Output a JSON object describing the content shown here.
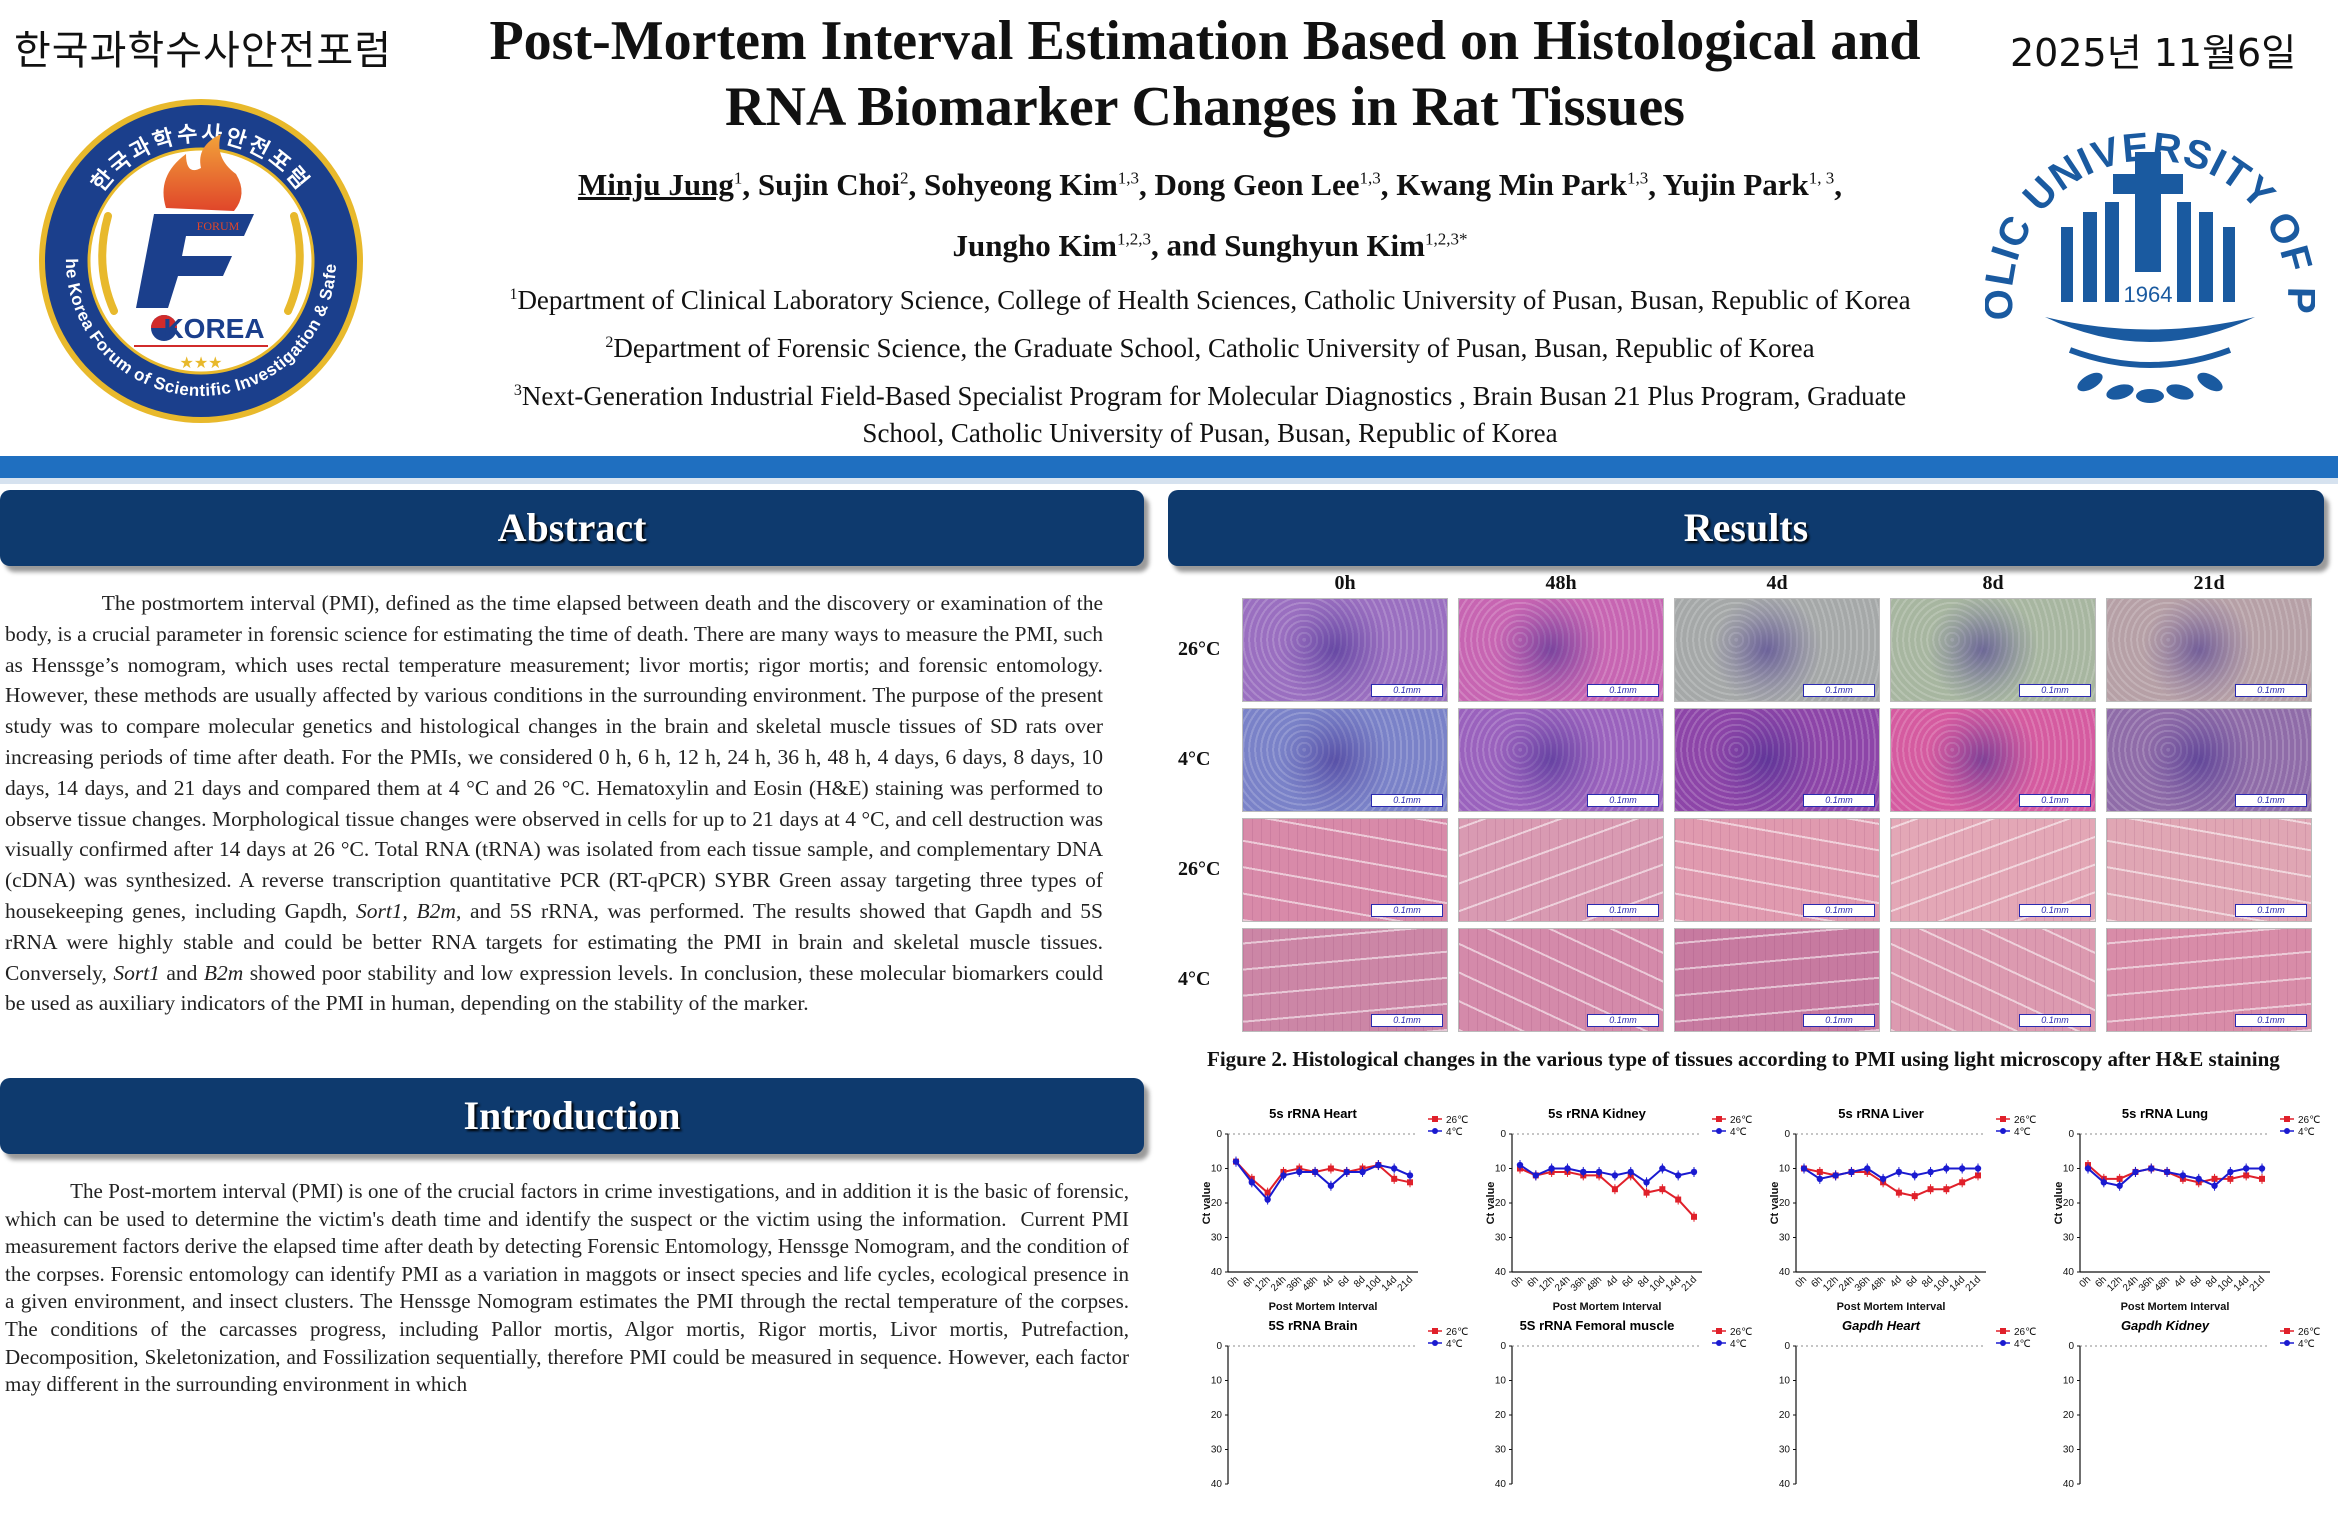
{
  "header": {
    "korean_forum_name": "한국과학수사안전포럼",
    "date": "2025년 11월6일",
    "title_line1": "Post-Mortem Interval Estimation Based on Histological and",
    "title_line2": "RNA Biomarker Changes in Rat Tissues",
    "authors": [
      {
        "name": "Minju Jung",
        "sup": "1",
        "underline": true
      },
      {
        "name": "Sujin Choi",
        "sup": "2"
      },
      {
        "name": "Sohyeong Kim",
        "sup": "1,3"
      },
      {
        "name": "Dong Geon Lee",
        "sup": "1,3"
      },
      {
        "name": "Kwang Min Park",
        "sup": "1,3"
      },
      {
        "name": "Yujin Park",
        "sup": "1, 3"
      },
      {
        "name": "Jungho Kim",
        "sup": "1,2,3"
      },
      {
        "name": "Sunghyun Kim",
        "sup": "1,2,3*"
      }
    ],
    "affiliations": [
      {
        "sup": "1",
        "text": "Department of Clinical Laboratory Science, College of Health Sciences, Catholic University of Pusan, Busan, Republic of Korea"
      },
      {
        "sup": "2",
        "text": "Department of Forensic Science, the Graduate School, Catholic University of Pusan, Busan, Republic of Korea"
      },
      {
        "sup": "3",
        "text": "Next-Generation Industrial Field-Based Specialist Program for Molecular Diagnostics , Brain Busan 21 Plus Program, Graduate School, Catholic University of Pusan, Busan, Republic of Korea"
      }
    ]
  },
  "left_logo": {
    "ring_top_text": "한국과학수사안전포럼",
    "ring_bottom_text": "The Korea Forum of Scientific Investigation & Safety",
    "forum_text": "FORUM",
    "korea_text": "KOREA",
    "stars": "★★★",
    "colors": {
      "navy": "#1b3f8c",
      "gold": "#e8b92c",
      "flame": "#e0462a"
    }
  },
  "right_logo": {
    "ring_text": "CATHOLIC UNIVERSITY OF PUSAN",
    "year": "1964",
    "color": "#1a5aa0"
  },
  "abstract": {
    "heading": "Abstract",
    "text_html": "&nbsp;&nbsp;&nbsp;&nbsp;&nbsp;&nbsp;&nbsp;&nbsp;&nbsp;&nbsp;&nbsp;&nbsp;&nbsp;&nbsp;&nbsp;&nbsp;The postmortem interval (PMI), defined as the time elapsed between death and the discovery or examination of the body, is a crucial parameter in forensic science for estimating the time of death. There are many ways to measure the PMI, such as Henssge’s nomogram, which uses rectal temperature measurement; livor mortis; rigor mortis; and forensic entomology. However, these methods are usually affected by various conditions in the surrounding environment. The purpose of the present study was to compare molecular genetics and histological changes in the brain and skeletal muscle tissues of SD rats over increasing periods of time after death. For the PMIs, we considered 0 h, 6 h, 12 h, 24 h, 36 h, 48 h, 4 days, 6 days, 8 days, 10 days, 14 days, and 21 days and compared them at 4 °C and 26 °C. Hematoxylin and Eosin (H&amp;E) staining was performed to observe tissue changes. Morphological tissue changes were observed in cells for up to 21 days at 4 °C, and cell destruction was visually confirmed after 14 days at 26 °C. Total RNA (tRNA) was isolated from each tissue sample, and complementary DNA (cDNA) was synthesized. A reverse transcription quantitative PCR (RT-qPCR) SYBR Green assay targeting three types of housekeeping genes, including Gapdh, <i>Sort1</i>, <i>B2m</i>, and 5S rRNA, was performed. The results showed that Gapdh and 5S rRNA were highly stable and could be better RNA targets for estimating the PMI in brain and skeletal muscle tissues. Conversely, <i>Sort1</i> and <i>B2m</i> showed poor stability and low expression levels. In conclusion, these molecular biomarkers could be used as auxiliary indicators of the PMI in human, depending on the stability of the marker."
  },
  "introduction": {
    "heading": "Introduction",
    "text_html": "&nbsp;&nbsp;&nbsp;&nbsp;&nbsp;&nbsp;&nbsp;&nbsp;&nbsp;&nbsp;&nbsp;&nbsp;The Post-mortem interval (PMI) is one of the crucial factors in crime investigations, and in addition it is the basic of forensic, which can be used to determine the victim's death time and identify the suspect or the victim using the information. &nbsp;Current PMI measurement factors derive the elapsed time after death by detecting Forensic Entomology, Henssge Nomogram, and the condition of the corpses. Forensic entomology can identify PMI as a variation in maggots or insect species and life cycles, ecological presence in a given environment, and insect clusters. The Henssge Nomogram estimates the PMI through the rectal temperature of the corpses. The conditions of the carcasses progress, including Pallor mortis, Algor mortis, Rigor mortis, Livor mortis, Putrefaction, Decomposition, Skeletonization, and Fossilization sequentially, therefore PMI could be measured in sequence. However, each factor may different in the surrounding environment in which"
  },
  "results": {
    "heading": "Results",
    "histology": {
      "columns": [
        "0h",
        "48h",
        "4d",
        "8d",
        "21d"
      ],
      "rows": [
        {
          "label": "26°C",
          "tissue": "brain",
          "tints": [
            "#9a6fc0",
            "#c765b2",
            "#a5a8a8",
            "#a7b6a0",
            "#b6a0a6"
          ]
        },
        {
          "label": "4°C",
          "tissue": "brain",
          "tints": [
            "#7a82c8",
            "#9a62bd",
            "#8d45a8",
            "#d55ba0",
            "#8f6ca8"
          ]
        },
        {
          "label": "26°C",
          "tissue": "muscle",
          "tints": [
            "#d88aa9",
            "#d99ab2",
            "#e09aaf",
            "#e3a7b6",
            "#e0a6b4"
          ]
        },
        {
          "label": "4°C",
          "tissue": "muscle",
          "tints": [
            "#cc86a6",
            "#d48aaa",
            "#c77aa0",
            "#dc9ab0",
            "#d88ca8"
          ]
        }
      ],
      "scale_label": "0.1mm"
    },
    "figure_caption": "Figure 2. Histological changes in the various type of tissues according to PMI using light microscopy after H&E staining"
  },
  "chart_data": [
    {
      "type": "line",
      "title": "5s rRNA Heart",
      "ylabel": "Ct value",
      "xlabel": "Post Mortem Interval",
      "categories": [
        "0h",
        "6h",
        "12h",
        "24h",
        "36h",
        "48h",
        "4d",
        "6d",
        "8d",
        "10d",
        "14d",
        "21d"
      ],
      "ylim": [
        0,
        40
      ],
      "series": [
        {
          "name": "26℃",
          "values": [
            8,
            13,
            17,
            11,
            10,
            11,
            10,
            11,
            10,
            9,
            13,
            14
          ]
        },
        {
          "name": "4℃",
          "values": [
            8,
            14,
            19,
            12,
            11,
            11,
            15,
            11,
            11,
            9,
            10,
            12
          ]
        }
      ]
    },
    {
      "type": "line",
      "title": "5s rRNA Kidney",
      "ylabel": "Ct value",
      "xlabel": "Post Mortem Interval",
      "categories": [
        "0h",
        "6h",
        "12h",
        "24h",
        "36h",
        "48h",
        "4d",
        "6d",
        "8d",
        "10d",
        "14d",
        "21d"
      ],
      "ylim": [
        0,
        40
      ],
      "series": [
        {
          "name": "26℃",
          "values": [
            10,
            12,
            11,
            11,
            12,
            12,
            16,
            12,
            17,
            16,
            19,
            24
          ]
        },
        {
          "name": "4℃",
          "values": [
            9,
            12,
            10,
            10,
            11,
            11,
            12,
            11,
            14,
            10,
            12,
            11
          ]
        }
      ]
    },
    {
      "type": "line",
      "title": "5s rRNA Liver",
      "ylabel": "Ct value",
      "xlabel": "Post Mortem Interval",
      "categories": [
        "0h",
        "6h",
        "12h",
        "24h",
        "36h",
        "48h",
        "4d",
        "6d",
        "8d",
        "10d",
        "14d",
        "21d"
      ],
      "ylim": [
        0,
        40
      ],
      "series": [
        {
          "name": "26℃",
          "values": [
            10,
            11,
            12,
            11,
            11,
            14,
            17,
            18,
            16,
            16,
            14,
            12
          ]
        },
        {
          "name": "4℃",
          "values": [
            10,
            13,
            12,
            11,
            10,
            13,
            11,
            12,
            11,
            10,
            10,
            10
          ]
        }
      ]
    },
    {
      "type": "line",
      "title": "5s rRNA Lung",
      "ylabel": "Ct value",
      "xlabel": "Post Mortem Interval",
      "categories": [
        "0h",
        "6h",
        "12h",
        "24h",
        "36h",
        "48h",
        "4d",
        "6d",
        "8d",
        "10d",
        "14d",
        "21d"
      ],
      "ylim": [
        0,
        40
      ],
      "series": [
        {
          "name": "26℃",
          "values": [
            9,
            13,
            13,
            11,
            10,
            11,
            13,
            14,
            13,
            13,
            12,
            13
          ]
        },
        {
          "name": "4℃",
          "values": [
            10,
            14,
            15,
            11,
            10,
            11,
            12,
            13,
            15,
            11,
            10,
            10
          ]
        }
      ]
    },
    {
      "type": "line",
      "title": "5S rRNA Brain",
      "ylabel": "",
      "xlabel": "",
      "categories": [],
      "ylim": [
        0,
        40
      ],
      "series": [
        {
          "name": "26℃",
          "values": []
        },
        {
          "name": "4℃",
          "values": []
        }
      ]
    },
    {
      "type": "line",
      "title": "5S rRNA Femoral muscle",
      "ylabel": "",
      "xlabel": "",
      "categories": [],
      "ylim": [
        0,
        40
      ],
      "series": [
        {
          "name": "26℃",
          "values": []
        },
        {
          "name": "4℃",
          "values": []
        }
      ]
    },
    {
      "type": "line",
      "title": "Gapdh Heart",
      "ylabel": "",
      "xlabel": "",
      "categories": [],
      "ylim": [
        0,
        40
      ],
      "series": [
        {
          "name": "26℃",
          "values": []
        },
        {
          "name": "4℃",
          "values": []
        }
      ]
    },
    {
      "type": "line",
      "title": "Gapdh Kidney",
      "ylabel": "",
      "xlabel": "",
      "categories": [],
      "ylim": [
        0,
        40
      ],
      "series": [
        {
          "name": "26℃",
          "values": []
        },
        {
          "name": "4℃",
          "values": []
        }
      ]
    }
  ],
  "chart_style": {
    "series_colors": [
      "#e0202a",
      "#1a1ad0"
    ],
    "axis_ticks": [
      "0",
      "10",
      "20",
      "30",
      "40"
    ]
  }
}
